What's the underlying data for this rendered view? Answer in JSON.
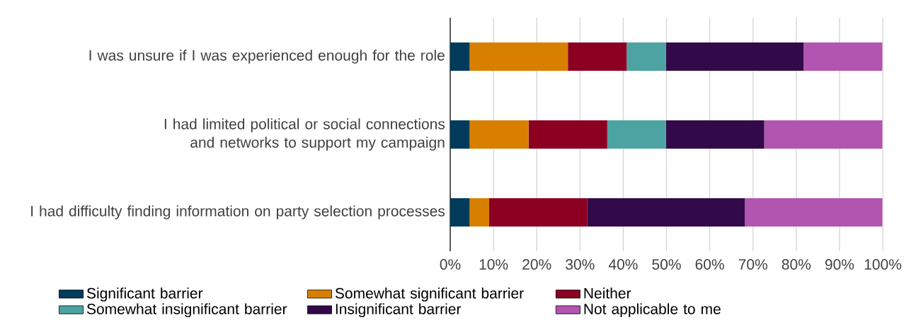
{
  "chart_data": {
    "type": "bar",
    "orientation": "horizontal",
    "stacked": true,
    "categories": [
      "I was unsure if I was experienced enough for the role",
      "I had limited political or social connections and networks to support my campaign",
      "I had difficulty finding information on party selection processes"
    ],
    "series": [
      {
        "name": "Significant barrier",
        "color": "#003b5c",
        "values": [
          4.5,
          4.5,
          4.5
        ]
      },
      {
        "name": "Somewhat significant barrier",
        "color": "#d97f00",
        "values": [
          22.7,
          13.6,
          4.5
        ]
      },
      {
        "name": "Neither",
        "color": "#8b0021",
        "values": [
          13.6,
          18.2,
          22.7
        ]
      },
      {
        "name": "Somewhat insignificant barrier",
        "color": "#4da3a1",
        "values": [
          9.1,
          13.6,
          0
        ]
      },
      {
        "name": "Insignificant barrier",
        "color": "#330a49",
        "values": [
          31.8,
          22.7,
          36.4
        ]
      },
      {
        "name": "Not applicable to me",
        "color": "#b155b0",
        "values": [
          18.2,
          27.3,
          31.8
        ]
      }
    ],
    "xlim": [
      0,
      100
    ],
    "xticks": [
      {
        "value": 0,
        "label": "0%"
      },
      {
        "value": 10,
        "label": "10%"
      },
      {
        "value": 20,
        "label": "20%"
      },
      {
        "value": 30,
        "label": "30%"
      },
      {
        "value": 40,
        "label": "40%"
      },
      {
        "value": 50,
        "label": "50%"
      },
      {
        "value": 60,
        "label": "60%"
      },
      {
        "value": 70,
        "label": "70%"
      },
      {
        "value": 80,
        "label": "80%"
      },
      {
        "value": 90,
        "label": "90%"
      },
      {
        "value": 100,
        "label": "100%"
      }
    ],
    "grid": "x",
    "legend": "bottom"
  }
}
